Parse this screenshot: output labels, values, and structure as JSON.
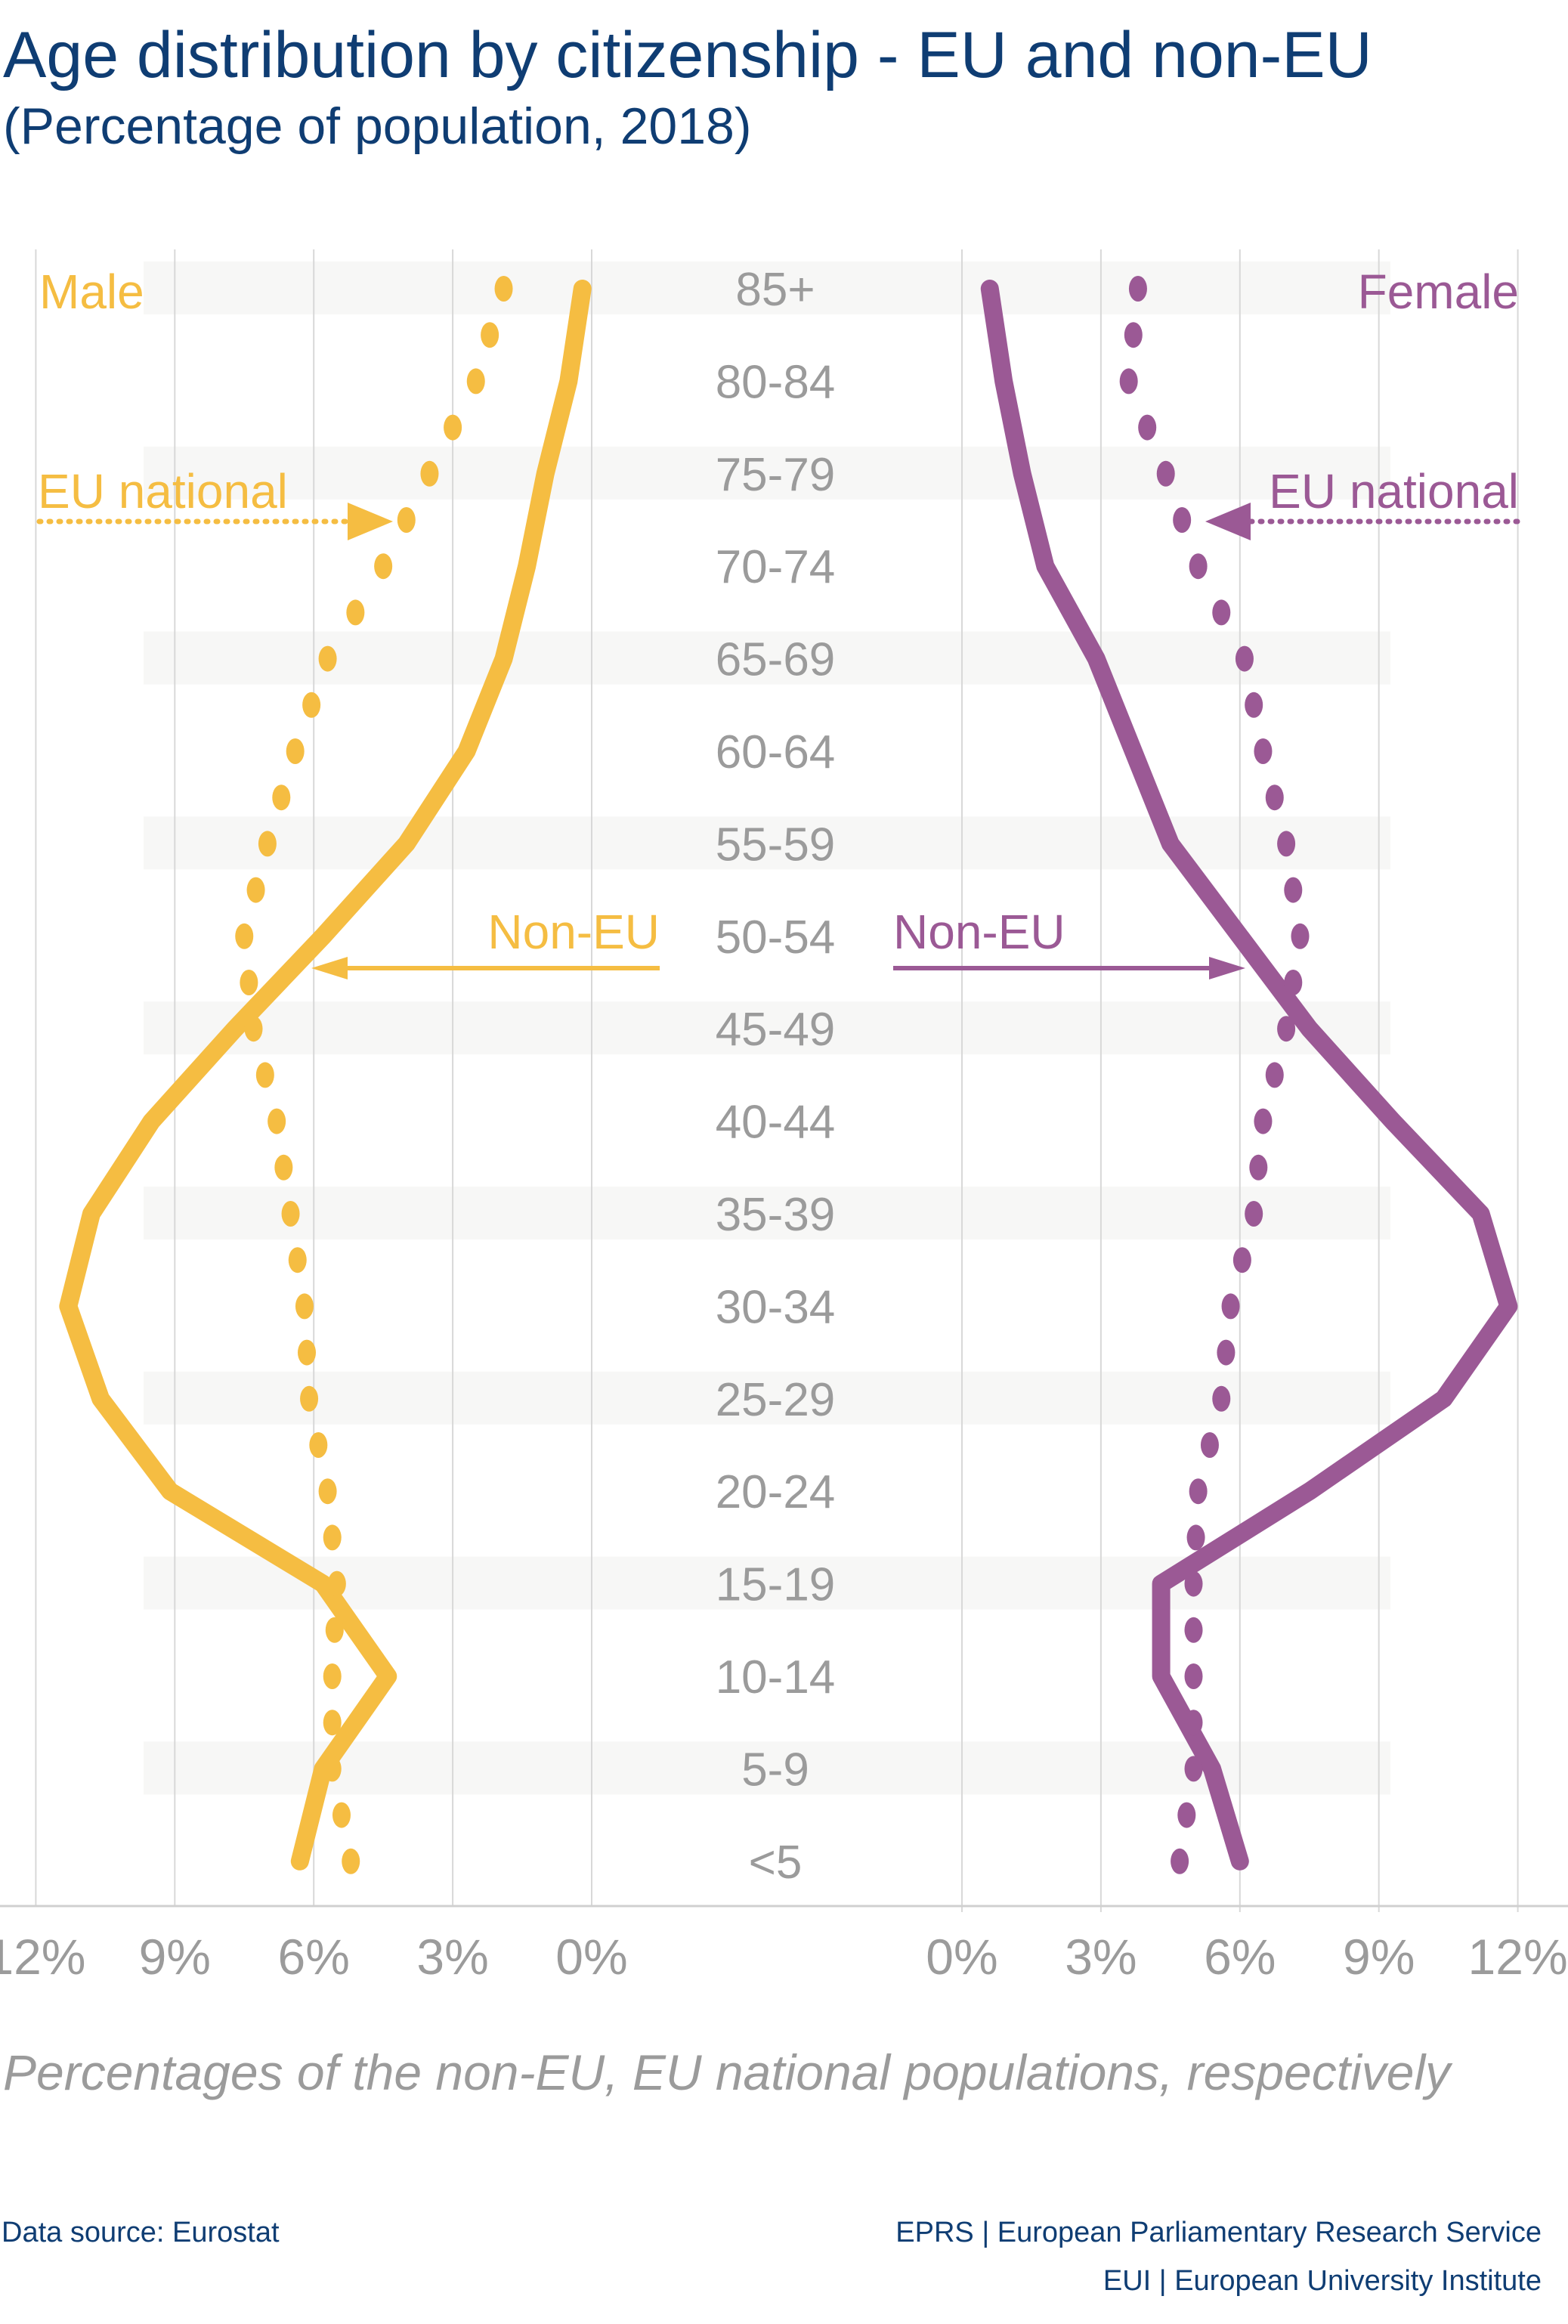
{
  "title": "Age distribution by citizenship - EU and non-EU",
  "subtitle": "(Percentage of population, 2018)",
  "note": "Percentages of the non-EU, EU national populations, respectively",
  "footer": {
    "source": "Data source: Eurostat",
    "credit1": "EPRS | European Parliamentary Research Service",
    "credit2": "EUI | European University Institute"
  },
  "colors": {
    "male": "#f5bd42",
    "female": "#9b5995",
    "text": "#0f3d73",
    "axis": "#9b9b9b"
  },
  "chart_data": {
    "type": "line",
    "orientation": "population-pyramid",
    "categories": [
      "85+",
      "80-84",
      "75-79",
      "70-74",
      "65-69",
      "60-64",
      "55-59",
      "50-54",
      "45-49",
      "40-44",
      "35-39",
      "30-34",
      "25-29",
      "20-24",
      "15-19",
      "10-14",
      "5-9",
      "<5"
    ],
    "xlim": [
      0,
      12
    ],
    "x_ticks": [
      "12%",
      "9%",
      "6%",
      "3%",
      "0%"
    ],
    "x_ticks_right": [
      "0%",
      "3%",
      "6%",
      "9%",
      "12%"
    ],
    "panels": {
      "left_label": "Male",
      "right_label": "Female"
    },
    "series": [
      {
        "name": "Non-EU",
        "side": "male",
        "style": "solid",
        "values": [
          0.2,
          0.5,
          1.0,
          1.4,
          1.9,
          2.7,
          4.0,
          5.8,
          7.7,
          9.5,
          10.8,
          11.3,
          10.6,
          9.1,
          5.8,
          4.4,
          5.8,
          6.3
        ]
      },
      {
        "name": "EU national",
        "side": "male",
        "style": "dotted",
        "values": [
          1.9,
          2.5,
          3.5,
          4.5,
          5.7,
          6.4,
          7.0,
          7.5,
          7.3,
          6.8,
          6.5,
          6.2,
          6.1,
          5.7,
          5.5,
          5.6,
          5.6,
          5.2
        ]
      },
      {
        "name": "Non-EU",
        "side": "female",
        "style": "solid",
        "values": [
          0.6,
          0.9,
          1.3,
          1.8,
          2.9,
          3.7,
          4.5,
          6.0,
          7.5,
          9.3,
          11.2,
          11.8,
          10.4,
          7.5,
          4.3,
          4.3,
          5.4,
          6.0
        ]
      },
      {
        "name": "EU national",
        "side": "female",
        "style": "dotted",
        "values": [
          3.8,
          3.6,
          4.4,
          5.1,
          6.1,
          6.5,
          7.0,
          7.3,
          7.0,
          6.5,
          6.3,
          5.8,
          5.6,
          5.1,
          5.0,
          5.0,
          5.0,
          4.7
        ]
      }
    ],
    "grid": true
  }
}
